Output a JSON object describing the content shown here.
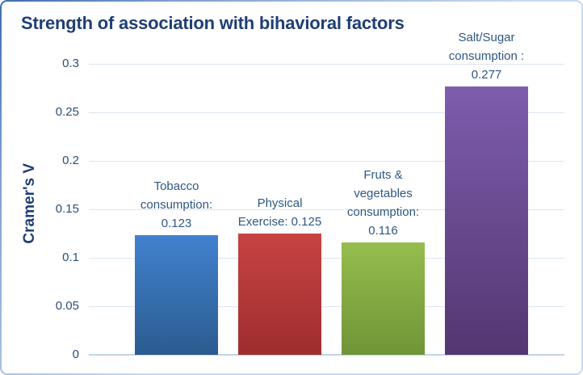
{
  "chart_data": {
    "type": "bar",
    "title": "Strength of association with bihavioral factors",
    "xlabel": "",
    "ylabel": "Cramer's V",
    "ylim": [
      0,
      0.3
    ],
    "yticks": [
      0,
      0.05,
      0.1,
      0.15,
      0.2,
      0.25,
      0.3
    ],
    "ytick_labels": [
      "0",
      "0.05",
      "0.1",
      "0.15",
      "0.2",
      "0.25",
      "0.3"
    ],
    "grid": true,
    "legend": false,
    "categories": [
      "Tobacco consumption",
      "Physical Exercise",
      "Fruts & vegetables consumption",
      "Salt/Sugar consumption"
    ],
    "values": [
      0.123,
      0.125,
      0.116,
      0.277
    ],
    "bar_label_lines": [
      [
        "Tobacco",
        "consumption:",
        "0.123"
      ],
      [
        "Physical",
        "Exercise: 0.125"
      ],
      [
        "Fruts &",
        "vegetables",
        "consumption:",
        "0.116"
      ],
      [
        "Salt/Sugar",
        "consumption :",
        "0.277"
      ]
    ],
    "bar_colors": [
      {
        "top": "#4181CE",
        "bottom": "#2B5C90"
      },
      {
        "top": "#C74342",
        "bottom": "#9E2D2E"
      },
      {
        "top": "#96BD4D",
        "bottom": "#6F9538"
      },
      {
        "top": "#7D5DAD",
        "bottom": "#543671"
      }
    ],
    "colors": {
      "title": "#1F3E75",
      "axis_title": "#1F3E75",
      "tick_label": "#2E4D7B",
      "bar_label": "#2E5783",
      "gridline": "#DCE5F2",
      "axis_line": "#C3D4E9",
      "frame_border_dark": "#3E6CB4",
      "frame_border_light": "#C9DAF0"
    }
  }
}
